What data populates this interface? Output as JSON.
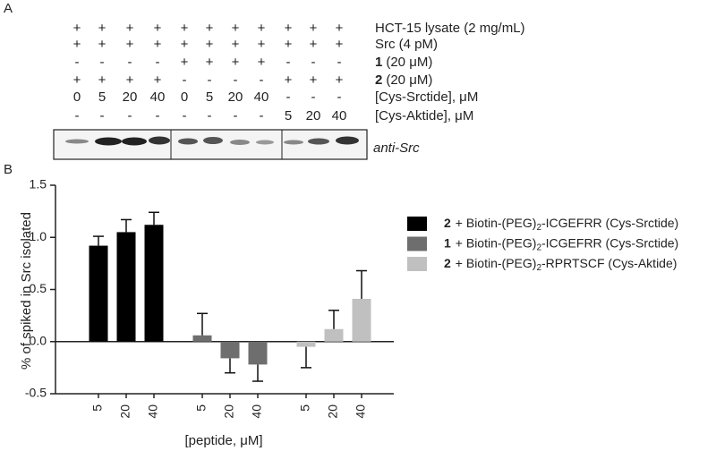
{
  "panel_a": {
    "label": "A",
    "rows": [
      {
        "cells": [
          "+",
          "+",
          "+",
          "+",
          "+",
          "+",
          "+",
          "+",
          "+",
          "+",
          "+"
        ],
        "label": "HCT-15 lysate (2 mg/mL)"
      },
      {
        "cells": [
          "+",
          "+",
          "+",
          "+",
          "+",
          "+",
          "+",
          "+",
          "+",
          "+",
          "+"
        ],
        "label": "Src (4 pM)"
      },
      {
        "cells": [
          "-",
          "-",
          "-",
          "-",
          "+",
          "+",
          "+",
          "+",
          "-",
          "-",
          "-"
        ],
        "bold": "1",
        "label": "(20 μM)"
      },
      {
        "cells": [
          "+",
          "+",
          "+",
          "+",
          "-",
          "-",
          "-",
          "-",
          "+",
          "+",
          "+"
        ],
        "bold": "2",
        "label": "(20 μM)"
      },
      {
        "cells": [
          "0",
          "5",
          "20",
          "40",
          "0",
          "5",
          "20",
          "40",
          "-",
          "-",
          "-"
        ],
        "label": "[Cys-Srctide], μM"
      },
      {
        "cells": [
          "-",
          "-",
          "-",
          "-",
          "-",
          "-",
          "-",
          "-",
          "5",
          "20",
          "40"
        ],
        "label": "[Cys-Aktide], μM"
      }
    ],
    "blot_label": "anti-Src"
  },
  "chart_data": {
    "type": "bar",
    "panel_label": "B",
    "ylabel": "% of spiked in Src isolated",
    "xlabel": "[peptide, μM]",
    "categories": [
      "5",
      "20",
      "40"
    ],
    "series": [
      {
        "bold": "2",
        "prefix": "+ Biotin-(PEG)",
        "sub": "2",
        "suffix": "-ICGEFRR (Cys-Srctide)",
        "color": "#000000",
        "values": [
          0.92,
          1.05,
          1.12
        ],
        "errors": [
          0.09,
          0.12,
          0.12
        ]
      },
      {
        "bold": "1",
        "prefix": "+ Biotin-(PEG)",
        "sub": "2",
        "suffix": "-ICGEFRR (Cys-Srctide)",
        "color": "#6e6e6e",
        "values": [
          0.06,
          -0.16,
          -0.22
        ],
        "errors": [
          0.21,
          0.14,
          0.16
        ]
      },
      {
        "bold": "2",
        "prefix": "+ Biotin-(PEG)",
        "sub": "2",
        "suffix": "-RPRTSCF (Cys-Aktide)",
        "color": "#c0c0c0",
        "values": [
          -0.05,
          0.12,
          0.41
        ],
        "errors": [
          0.2,
          0.18,
          0.27
        ]
      }
    ],
    "ylim": [
      -0.5,
      1.5
    ],
    "yticks": [
      -0.5,
      {
        "value": 0,
        "label": "0.0"
      },
      0.5,
      {
        "value": 1,
        "label": "1.0"
      },
      1.5
    ]
  }
}
